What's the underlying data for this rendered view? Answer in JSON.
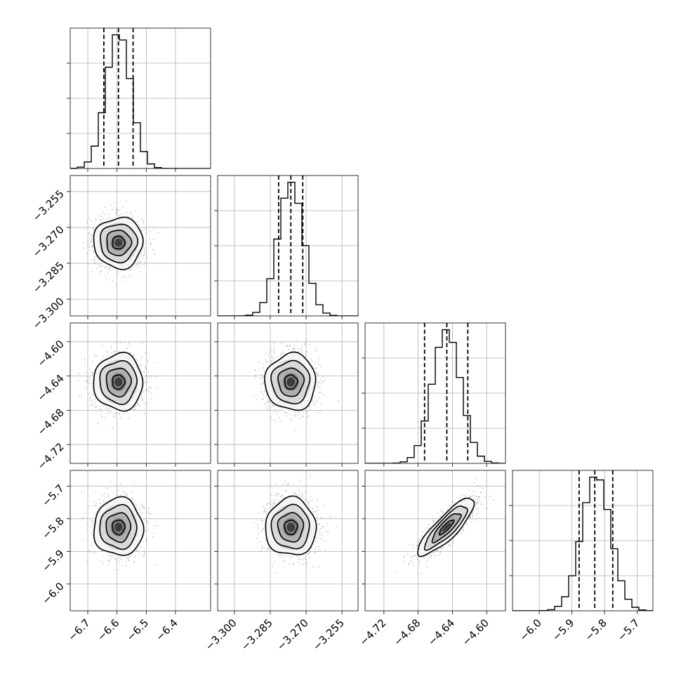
{
  "colors": {
    "axes": "#000000",
    "grid": "#b0b0b0",
    "samples": "#9a9a9a",
    "density_levels": [
      "#f5f5f5",
      "#d9d9d9",
      "#b0b0b0",
      "#7a7a7a",
      "#3c3c3c",
      "#000000"
    ]
  },
  "chart_data": {
    "type": "corner",
    "grid": true,
    "parameters": [
      {
        "range": [
          -6.76,
          -6.28
        ],
        "ticks": [
          {
            "value": -6.7,
            "label": "−6.7"
          },
          {
            "value": -6.6,
            "label": "−6.6"
          },
          {
            "value": -6.5,
            "label": "−6.5"
          },
          {
            "value": -6.4,
            "label": "−6.4"
          }
        ],
        "mean": -6.595,
        "std": 0.042,
        "quantiles": [
          -6.645,
          -6.595,
          -6.545
        ]
      },
      {
        "range": [
          -3.307,
          -3.2483
        ],
        "ticks": [
          {
            "value": -3.3,
            "label": "−3.300"
          },
          {
            "value": -3.285,
            "label": "−3.285"
          },
          {
            "value": -3.27,
            "label": "−3.270"
          },
          {
            "value": -3.255,
            "label": "−3.255"
          }
        ],
        "mean": -3.2764,
        "std": 0.0053,
        "quantiles": [
          -3.2815,
          -3.2764,
          -3.2714
        ]
      },
      {
        "range": [
          -4.742,
          -4.578
        ],
        "ticks": [
          {
            "value": -4.72,
            "label": "−4.72"
          },
          {
            "value": -4.68,
            "label": "−4.68"
          },
          {
            "value": -4.64,
            "label": "−4.64"
          },
          {
            "value": -4.6,
            "label": "−4.60"
          }
        ],
        "mean": -4.647,
        "std": 0.0165,
        "quantiles": [
          -4.6725,
          -4.6465,
          -4.622
        ]
      },
      {
        "range": [
          -6.082,
          -5.652
        ],
        "ticks": [
          {
            "value": -6.0,
            "label": "−6.0"
          },
          {
            "value": -5.9,
            "label": "−5.9"
          },
          {
            "value": -5.8,
            "label": "−5.8"
          },
          {
            "value": -5.7,
            "label": "−5.7"
          }
        ],
        "mean": -5.826,
        "std": 0.044,
        "quantiles": [
          -5.878,
          -5.83,
          -5.775
        ]
      }
    ],
    "correlations": [
      {
        "i": 0,
        "j": 1,
        "rho": 0.0
      },
      {
        "i": 0,
        "j": 2,
        "rho": 0.0
      },
      {
        "i": 0,
        "j": 3,
        "rho": 0.0
      },
      {
        "i": 1,
        "j": 2,
        "rho": 0.0
      },
      {
        "i": 1,
        "j": 3,
        "rho": 0.0
      },
      {
        "i": 2,
        "j": 3,
        "rho": 0.85
      }
    ],
    "contour_sigma_levels": [
      0.5,
      1.0,
      1.5,
      2.0
    ]
  }
}
